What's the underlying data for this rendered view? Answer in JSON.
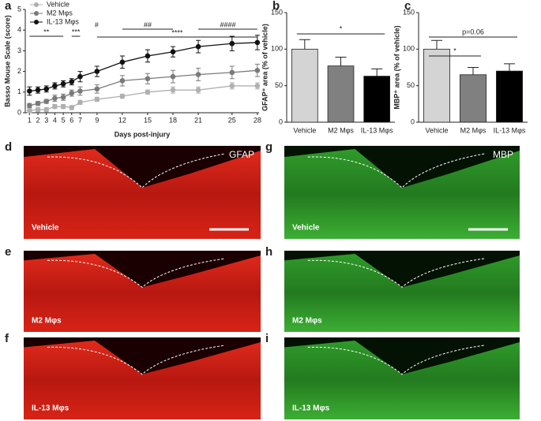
{
  "chart_data": [
    {
      "panel": "a",
      "type": "line",
      "ylabel": "Basso Mouse Scale (score)",
      "xlabel": "Days post-injury",
      "x": [
        1,
        2,
        3,
        4,
        5,
        6,
        7,
        9,
        12,
        15,
        18,
        21,
        25,
        28
      ],
      "xticks": [
        1,
        2,
        3,
        4,
        5,
        6,
        7,
        9,
        12,
        15,
        18,
        21,
        25,
        28
      ],
      "xlim": [
        0.5,
        28.2
      ],
      "ylim": [
        0,
        5
      ],
      "yticks": [
        0,
        1,
        2,
        3,
        4,
        5
      ],
      "legend": "upper left",
      "series": [
        {
          "name": "Vehicle",
          "color": "#b0b0b0",
          "values": [
            0.1,
            0.15,
            0.15,
            0.3,
            0.3,
            0.25,
            0.5,
            0.65,
            0.8,
            1.0,
            1.1,
            1.1,
            1.3,
            1.3
          ],
          "errors": [
            0.1,
            0.1,
            0.1,
            0.1,
            0.1,
            0.1,
            0.1,
            0.1,
            0.1,
            0.1,
            0.15,
            0.15,
            0.15,
            0.15
          ]
        },
        {
          "name": "M2 Mφs",
          "color": "#7a7a7a",
          "values": [
            0.35,
            0.45,
            0.55,
            0.7,
            0.75,
            0.95,
            1.05,
            1.15,
            1.55,
            1.65,
            1.75,
            1.85,
            1.95,
            2.05
          ],
          "errors": [
            0.1,
            0.1,
            0.1,
            0.15,
            0.15,
            0.15,
            0.2,
            0.2,
            0.25,
            0.25,
            0.3,
            0.3,
            0.3,
            0.3
          ]
        },
        {
          "name": "IL-13 Mφs",
          "color": "#111111",
          "values": [
            1.05,
            1.1,
            1.15,
            1.3,
            1.4,
            1.5,
            1.75,
            2.0,
            2.45,
            2.75,
            2.95,
            3.2,
            3.35,
            3.4
          ],
          "errors": [
            0.2,
            0.15,
            0.15,
            0.15,
            0.15,
            0.15,
            0.25,
            0.25,
            0.3,
            0.3,
            0.25,
            0.3,
            0.35,
            0.35
          ]
        }
      ],
      "annotations": [
        {
          "text": "**",
          "from": 1,
          "to": 5
        },
        {
          "text": "***",
          "from": 6,
          "to": 7
        },
        {
          "text": "#",
          "from": 9,
          "to": 9
        },
        {
          "text": "##",
          "from": 12,
          "to": 18
        },
        {
          "text": "****",
          "from": 9,
          "to": 28
        },
        {
          "text": "####",
          "from": 21,
          "to": 28
        }
      ]
    },
    {
      "panel": "b",
      "type": "bar",
      "ylabel": "GFAP⁺ area (% of vehicle)",
      "categories": [
        "Vehicle",
        "M2 Mφs",
        "IL-13 Mφs"
      ],
      "values": [
        100,
        77,
        63
      ],
      "errors": [
        13,
        12,
        10
      ],
      "colors": [
        "#d4d4d4",
        "#808080",
        "#000000"
      ],
      "ylim": [
        0,
        150
      ],
      "yticks": [
        0,
        50,
        100,
        150
      ],
      "annotations": [
        {
          "text": "*",
          "from": 0,
          "to": 2
        }
      ]
    },
    {
      "panel": "c",
      "type": "bar",
      "ylabel": "MBP⁺ area (% of vehicle)",
      "categories": [
        "Vehicle",
        "M2 Mφs",
        "IL-13 Mφs"
      ],
      "values": [
        100,
        65,
        70
      ],
      "errors": [
        12,
        10,
        10
      ],
      "colors": [
        "#d4d4d4",
        "#808080",
        "#000000"
      ],
      "ylim": [
        0,
        150
      ],
      "yticks": [
        0,
        50,
        100,
        150
      ],
      "annotations": [
        {
          "text": "*",
          "from": 0,
          "to": 1
        },
        {
          "text": "p=0.06",
          "from": 0,
          "to": 2
        }
      ]
    }
  ],
  "stains": [
    "GFAP",
    "MBP"
  ],
  "images": [
    {
      "panel": "d",
      "label": "Vehicle"
    },
    {
      "panel": "e",
      "label": "M2 Mφs"
    },
    {
      "panel": "f",
      "label": "IL-13 Mφs"
    },
    {
      "panel": "g",
      "label": "Vehicle"
    },
    {
      "panel": "h",
      "label": "M2 Mφs"
    },
    {
      "panel": "i",
      "label": "IL-13 Mφs"
    }
  ]
}
